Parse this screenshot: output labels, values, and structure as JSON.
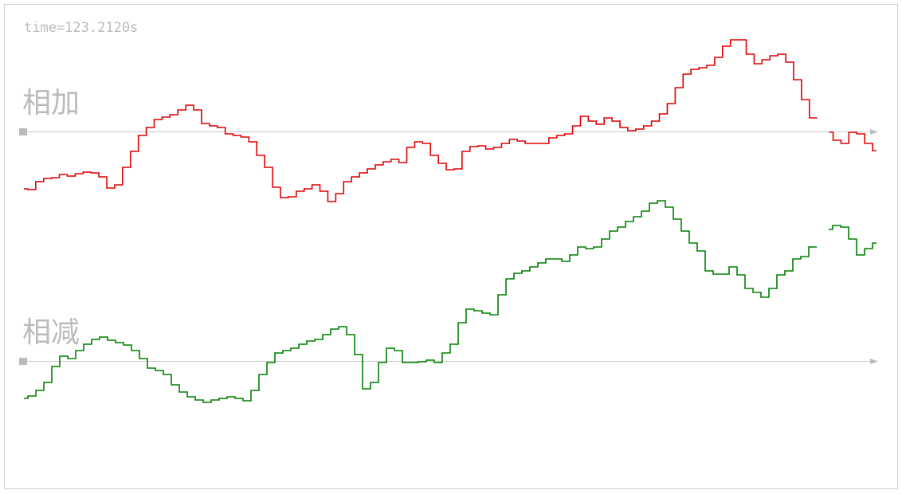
{
  "header": {
    "time": "time=123.2120s"
  },
  "chart_data": [
    {
      "type": "line",
      "title": "相加",
      "color": "#e00000",
      "ylim": [
        -100,
        130
      ],
      "values": [
        -72,
        -73,
        -63,
        -59,
        -58,
        -54,
        -56,
        -53,
        -51,
        -52,
        -57,
        -71,
        -67,
        -45,
        -25,
        -5,
        5,
        15,
        18,
        21,
        27,
        33,
        27,
        10,
        7,
        5,
        -3,
        -5,
        -7,
        -13,
        -30,
        -45,
        -70,
        -83,
        -82,
        -75,
        -72,
        -67,
        -75,
        -88,
        -78,
        -63,
        -57,
        -52,
        -47,
        -42,
        -38,
        -35,
        -39,
        -20,
        -13,
        -15,
        -30,
        -40,
        -48,
        -47,
        -25,
        -19,
        -18,
        -22,
        -20,
        -15,
        -10,
        -12,
        -15,
        -15,
        -15,
        -8,
        -5,
        -3,
        7,
        19,
        13,
        9,
        17,
        13,
        5,
        1,
        3,
        7,
        13,
        22,
        35,
        55,
        72,
        78,
        80,
        83,
        93,
        107,
        115,
        115,
        97,
        85,
        90,
        95,
        97,
        87,
        65,
        40,
        17,
        null,
        -1,
        -11,
        -15,
        -1,
        -3,
        -15,
        -24
      ]
    },
    {
      "type": "line",
      "title": "相减",
      "color": "#008000",
      "ylim": [
        -60,
        210
      ],
      "values": [
        -47,
        -44,
        -37,
        -27,
        -7,
        6,
        3,
        13,
        21,
        27,
        30,
        26,
        23,
        20,
        13,
        3,
        -9,
        -12,
        -17,
        -30,
        -39,
        -45,
        -49,
        -52,
        -49,
        -47,
        -45,
        -47,
        -50,
        -37,
        -17,
        -2,
        10,
        13,
        16,
        21,
        25,
        27,
        33,
        40,
        43,
        33,
        8,
        -35,
        -27,
        -2,
        16,
        13,
        -2,
        -2,
        -1,
        1,
        -2,
        10,
        21,
        48,
        65,
        63,
        60,
        58,
        83,
        103,
        110,
        113,
        118,
        123,
        128,
        128,
        125,
        133,
        143,
        141,
        143,
        153,
        163,
        168,
        175,
        181,
        188,
        198,
        201,
        193,
        178,
        163,
        148,
        138,
        113,
        109,
        109,
        118,
        108,
        91,
        86,
        80,
        91,
        108,
        113,
        128,
        131,
        143,
        null,
        165,
        170,
        168,
        153,
        133,
        141,
        148
      ]
    }
  ]
}
